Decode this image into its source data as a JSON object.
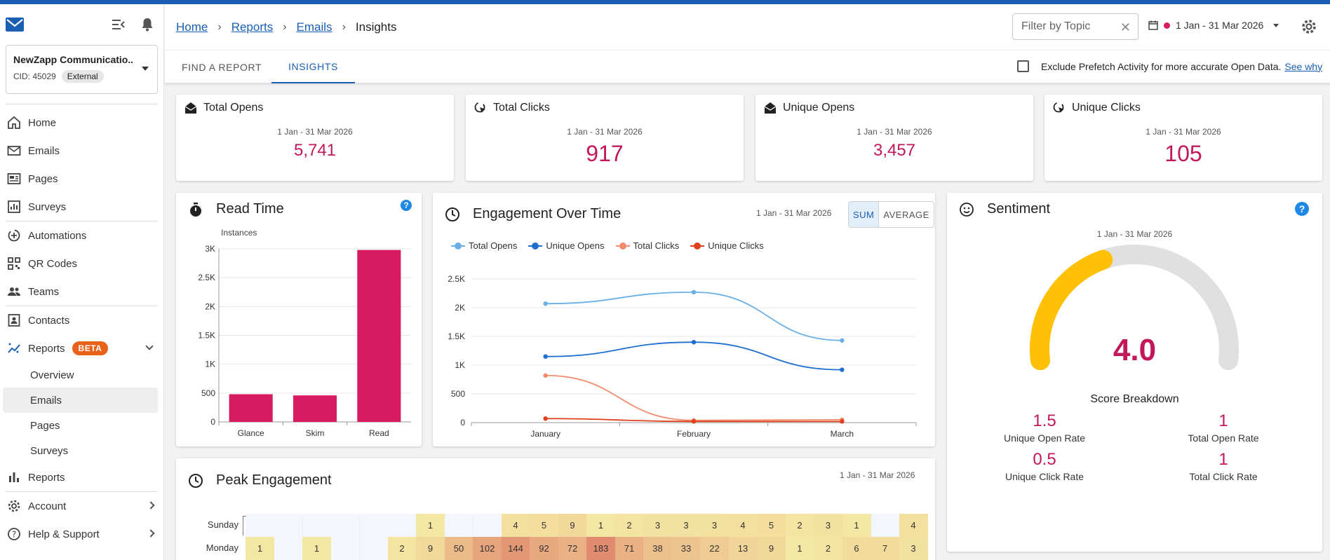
{
  "sidebar": {
    "account": {
      "name": "NewZapp Communicatio...",
      "cid": "CID: 45029",
      "type": "External"
    },
    "nav": [
      {
        "label": "Home",
        "icon": "home-icon"
      },
      {
        "label": "Emails",
        "icon": "mail-icon"
      },
      {
        "label": "Pages",
        "icon": "pages-icon"
      },
      {
        "label": "Surveys",
        "icon": "surveys-icon"
      },
      {
        "label": "Automations",
        "icon": "automations-icon"
      },
      {
        "label": "QR Codes",
        "icon": "qr-code-icon"
      },
      {
        "label": "Teams",
        "icon": "teams-icon"
      },
      {
        "label": "Contacts",
        "icon": "contacts-icon"
      },
      {
        "label": "Reports",
        "icon": "reports-icon",
        "badge": "BETA"
      },
      {
        "label": "Reports",
        "icon": "bar-chart-icon"
      },
      {
        "label": "Account",
        "icon": "gear-icon"
      },
      {
        "label": "Help & Support",
        "icon": "help-icon"
      }
    ],
    "reports_sub": [
      "Overview",
      "Emails",
      "Pages",
      "Surveys"
    ],
    "active_sub": "Emails"
  },
  "header": {
    "breadcrumbs": [
      "Home",
      "Reports",
      "Emails"
    ],
    "current": "Insights",
    "filter_placeholder": "Filter by Topic",
    "date_range": "1 Jan - 31 Mar 2026"
  },
  "tabs": [
    "FIND A REPORT",
    "INSIGHTS"
  ],
  "active_tab": "INSIGHTS",
  "prefetch": {
    "label": "Exclude Prefetch Activity for more accurate Open Data.",
    "link": "See why"
  },
  "stats": [
    {
      "title": "Total Opens",
      "date": "1 Jan - 31 Mar 2026",
      "value": "5,741"
    },
    {
      "title": "Total Clicks",
      "date": "1 Jan - 31 Mar 2026",
      "value": "917"
    },
    {
      "title": "Unique Opens",
      "date": "1 Jan - 31 Mar 2026",
      "value": "3,457"
    },
    {
      "title": "Unique Clicks",
      "date": "1 Jan - 31 Mar 2026",
      "value": "105"
    }
  ],
  "read_time": {
    "title": "Read Time",
    "help": "?"
  },
  "engagement": {
    "title": "Engagement Over Time",
    "date": "1 Jan - 31 Mar 2026",
    "toggle": [
      "SUM",
      "AVERAGE"
    ]
  },
  "sentiment": {
    "title": "Sentiment",
    "date": "1 Jan - 31 Mar 2026",
    "score": "4.0",
    "score_value": 4.0,
    "score_max": 10,
    "breakdown_title": "Score Breakdown",
    "breakdown": [
      {
        "value": "1.5",
        "label": "Unique Open Rate"
      },
      {
        "value": "1",
        "label": "Total Open Rate"
      },
      {
        "value": "0.5",
        "label": "Unique Click Rate"
      },
      {
        "value": "1",
        "label": "Total Click Rate"
      }
    ],
    "colors": {
      "fill": "#ffc107",
      "track": "#e0e0e0"
    }
  },
  "peak": {
    "title": "Peak Engagement",
    "date": "1 Jan - 31 Mar 2026"
  },
  "chart_data": [
    {
      "type": "bar",
      "categories": [
        "Glance",
        "Skim",
        "Read"
      ],
      "values": [
        480,
        460,
        2980
      ],
      "title": "",
      "xlabel": "",
      "ylabel": "Instances",
      "ylim": [
        0,
        3000
      ],
      "yticks": [
        "0",
        "500",
        "1K",
        "1.5K",
        "2K",
        "2.5K",
        "3K"
      ],
      "color": "#d81b60"
    },
    {
      "type": "line",
      "categories": [
        "January",
        "February",
        "March"
      ],
      "series": [
        {
          "name": "Total Opens",
          "values": [
            2070,
            2270,
            1430
          ],
          "color": "#6ab0e6"
        },
        {
          "name": "Unique Opens",
          "values": [
            1150,
            1400,
            920
          ],
          "color": "#1e6fd0"
        },
        {
          "name": "Total Clicks",
          "values": [
            820,
            40,
            50
          ],
          "color": "#f28b6c"
        },
        {
          "name": "Unique Clicks",
          "values": [
            70,
            20,
            20
          ],
          "color": "#e0401c"
        }
      ],
      "title": "",
      "ylim": [
        0,
        2500
      ],
      "yticks": [
        "0",
        "500",
        "1K",
        "1.5K",
        "2K",
        "2.5K"
      ]
    },
    {
      "type": "heatmap",
      "rows": [
        {
          "label": "Sunday",
          "values": [
            null,
            null,
            null,
            null,
            null,
            null,
            1,
            null,
            null,
            4,
            5,
            9,
            1,
            2,
            3,
            3,
            3,
            4,
            5,
            2,
            3,
            1,
            null,
            4
          ]
        },
        {
          "label": "Monday",
          "values": [
            1,
            null,
            1,
            null,
            null,
            2,
            9,
            50,
            102,
            144,
            92,
            72,
            183,
            71,
            38,
            33,
            22,
            13,
            9,
            1,
            2,
            6,
            7,
            3
          ]
        }
      ]
    }
  ]
}
